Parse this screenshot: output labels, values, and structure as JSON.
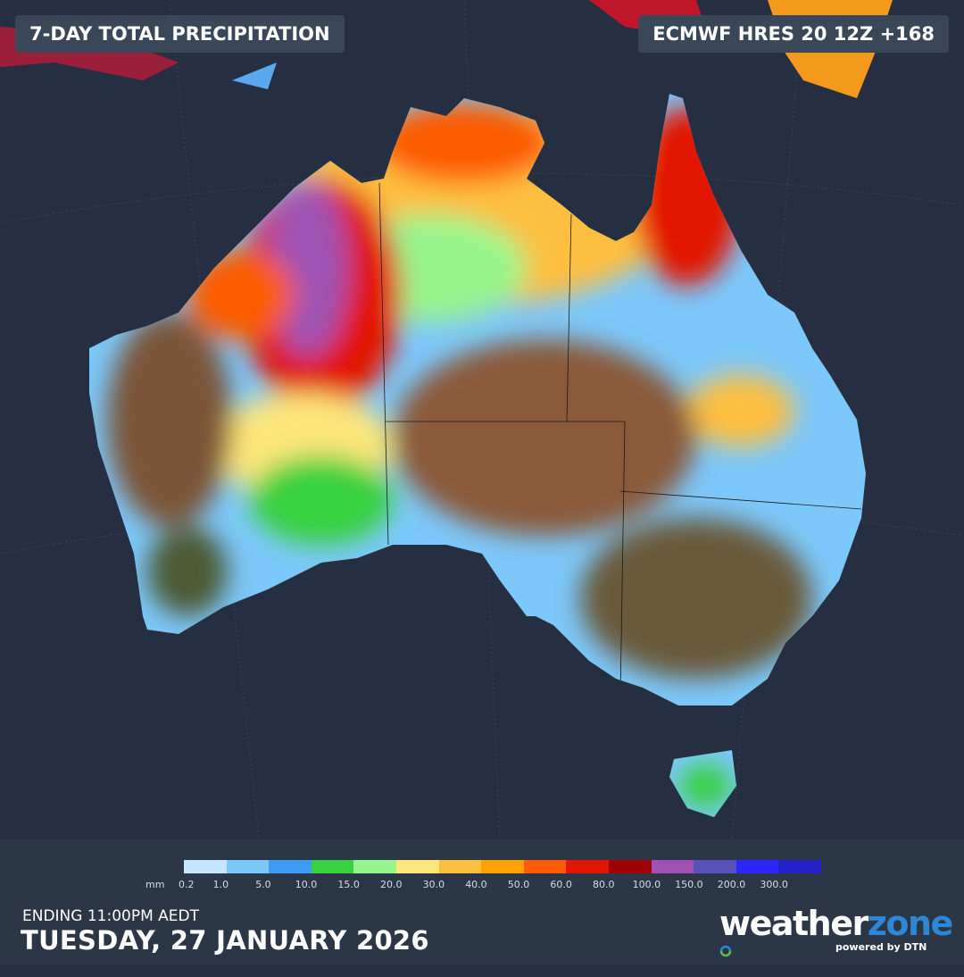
{
  "header": {
    "title": "7-DAY TOTAL PRECIPITATION",
    "model": "ECMWF HRES 20 12Z +168"
  },
  "legend": {
    "unit": "mm",
    "labels": [
      "0.2",
      "1.0",
      "5.0",
      "10.0",
      "15.0",
      "20.0",
      "30.0",
      "40.0",
      "50.0",
      "60.0",
      "80.0",
      "100.0",
      "150.0",
      "200.0",
      "300.0"
    ],
    "colors": [
      "#c6e6ff",
      "#7cc8fb",
      "#3d9bf4",
      "#39d13f",
      "#97f58d",
      "#fde67a",
      "#fdbf3f",
      "#fea204",
      "#fd5b05",
      "#e21703",
      "#a00104",
      "#9f52b3",
      "#5652b8",
      "#2a27f8",
      "#2321c8"
    ]
  },
  "footer": {
    "ending": "ENDING 11:00PM AEDT",
    "date": "TUESDAY, 27 JANUARY 2026"
  },
  "logo": {
    "word_a": "weather",
    "word_b": "zone",
    "sub": "powered by DTN"
  }
}
